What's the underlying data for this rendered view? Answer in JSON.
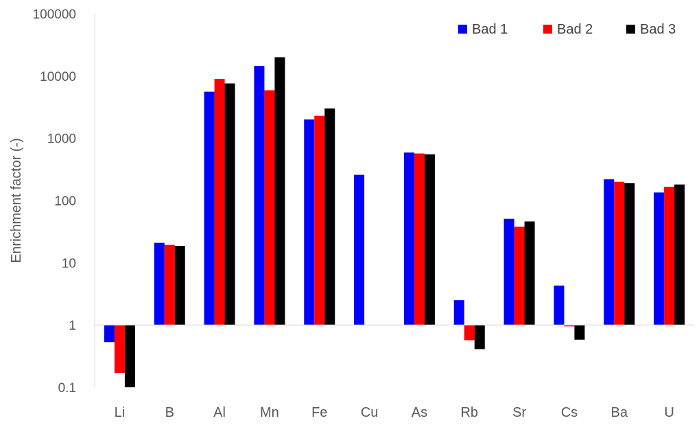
{
  "chart_data": {
    "type": "bar",
    "title": "",
    "xlabel": "",
    "ylabel": "Enrichment factor (-)",
    "yscale": "log",
    "ylim": [
      0.1,
      100000
    ],
    "baseline": 1,
    "grid": false,
    "legend_position": "top-right",
    "yticks": [
      "0.1",
      "1",
      "10",
      "100",
      "1000",
      "10000",
      "100000"
    ],
    "categories": [
      "Li",
      "B",
      "Al",
      "Mn",
      "Fe",
      "Cu",
      "As",
      "Rb",
      "Sr",
      "Cs",
      "Ba",
      "U"
    ],
    "series": [
      {
        "name": "Bad 1",
        "color": "#0000ff",
        "values": [
          0.53,
          21,
          5600,
          14500,
          2000,
          260,
          590,
          2.5,
          51,
          4.3,
          220,
          135
        ]
      },
      {
        "name": "Bad 2",
        "color": "#ff0000",
        "values": [
          0.17,
          19.5,
          9000,
          5900,
          2300,
          null,
          570,
          0.57,
          38,
          0.95,
          200,
          165
        ]
      },
      {
        "name": "Bad 3",
        "color": "#000000",
        "values": [
          0.1,
          18.5,
          7600,
          20000,
          3000,
          null,
          550,
          0.41,
          46,
          0.58,
          190,
          180
        ]
      }
    ]
  }
}
